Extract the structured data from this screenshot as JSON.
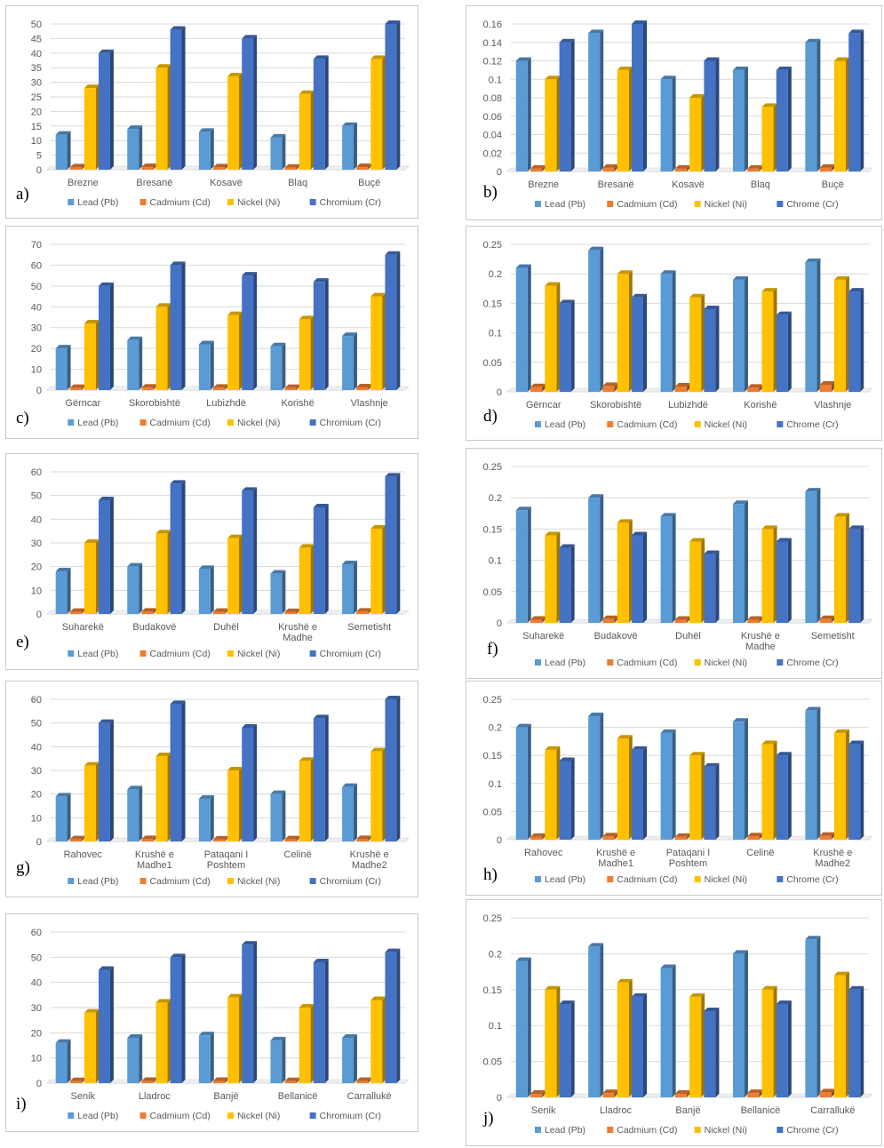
{
  "colors": {
    "lead": "#5b9bd5",
    "cadmium": "#ed7d31",
    "nickel": "#ffc000",
    "chromium": "#4472c4"
  },
  "chart_data": [
    {
      "type": "bar",
      "panel_label": "a)",
      "categories": [
        "Brezne",
        "Bresanë",
        "Kosavë",
        "Blaq",
        "Buçë"
      ],
      "ylim": [
        0,
        50
      ],
      "yticks": [
        0,
        5,
        10,
        15,
        20,
        25,
        30,
        35,
        40,
        45,
        50
      ],
      "series": [
        {
          "name": "Lead (Pb)",
          "values": [
            12,
            14,
            13,
            11,
            15
          ]
        },
        {
          "name": "Cadmium (Cd)",
          "values": [
            0.8,
            0.9,
            0.8,
            0.7,
            0.9
          ]
        },
        {
          "name": "Nickel (Ni)",
          "values": [
            28,
            35,
            32,
            26,
            38
          ]
        },
        {
          "name": "Chromium (Cr)",
          "values": [
            40,
            48,
            45,
            38,
            50
          ]
        }
      ],
      "legend": "bottom",
      "grid": true
    },
    {
      "type": "bar",
      "panel_label": "b)",
      "categories": [
        "Brezne",
        "Bresanë",
        "Kosavë",
        "Blaq",
        "Buçë"
      ],
      "ylim": [
        0,
        0.16
      ],
      "yticks": [
        0,
        0.02,
        0.04,
        0.06,
        0.08,
        0.1,
        0.12,
        0.14,
        0.16
      ],
      "series": [
        {
          "name": "Lead (Pb)",
          "values": [
            0.12,
            0.15,
            0.1,
            0.11,
            0.14
          ]
        },
        {
          "name": "Cadmium (Cd)",
          "values": [
            0.003,
            0.004,
            0.003,
            0.003,
            0.004
          ]
        },
        {
          "name": "Nickel (Ni)",
          "values": [
            0.1,
            0.11,
            0.08,
            0.07,
            0.12
          ]
        },
        {
          "name": "Chrome (Cr)",
          "values": [
            0.14,
            0.16,
            0.12,
            0.11,
            0.15
          ]
        }
      ],
      "legend": "bottom",
      "grid": true
    },
    {
      "type": "bar",
      "panel_label": "c)",
      "categories": [
        "Gërncar",
        "Skorobishtë",
        "Lubizhdë",
        "Korishë",
        "Vlashnje"
      ],
      "ylim": [
        0,
        70
      ],
      "yticks": [
        0,
        10,
        20,
        30,
        40,
        50,
        60,
        70
      ],
      "series": [
        {
          "name": "Lead (Pb)",
          "values": [
            20,
            24,
            22,
            21,
            26
          ]
        },
        {
          "name": "Cadmium (Cd)",
          "values": [
            1,
            1.2,
            1.1,
            1,
            1.3
          ]
        },
        {
          "name": "Nickel (Ni)",
          "values": [
            32,
            40,
            36,
            34,
            45
          ]
        },
        {
          "name": "Chromium (Cr)",
          "values": [
            50,
            60,
            55,
            52,
            65
          ]
        }
      ],
      "legend": "bottom",
      "grid": true
    },
    {
      "type": "bar",
      "panel_label": "d)",
      "categories": [
        "Gërncar",
        "Skorobishtë",
        "Lubizhdë",
        "Korishë",
        "Vlashnje"
      ],
      "ylim": [
        0,
        0.25
      ],
      "yticks": [
        0,
        0.05,
        0.1,
        0.15,
        0.2,
        0.25
      ],
      "series": [
        {
          "name": "Lead (Pb)",
          "values": [
            0.21,
            0.24,
            0.2,
            0.19,
            0.22
          ]
        },
        {
          "name": "Cadmium (Cd)",
          "values": [
            0.008,
            0.01,
            0.009,
            0.007,
            0.012
          ]
        },
        {
          "name": "Nickel (Ni)",
          "values": [
            0.18,
            0.2,
            0.16,
            0.17,
            0.19
          ]
        },
        {
          "name": "Chrome (Cr)",
          "values": [
            0.15,
            0.16,
            0.14,
            0.13,
            0.17
          ]
        }
      ],
      "legend": "bottom",
      "grid": true
    },
    {
      "type": "bar",
      "panel_label": "e)",
      "categories": [
        "Suharekë",
        "Budakovë",
        "Duhël",
        "Krushë e Madhe",
        "Semetisht"
      ],
      "ylim": [
        0,
        60
      ],
      "yticks": [
        0,
        10,
        20,
        30,
        40,
        50,
        60
      ],
      "series": [
        {
          "name": "Lead (Pb)",
          "values": [
            18,
            20,
            19,
            17,
            21
          ]
        },
        {
          "name": "Cadmium (Cd)",
          "values": [
            0.9,
            1,
            0.9,
            0.8,
            1
          ]
        },
        {
          "name": "Nickel (Ni)",
          "values": [
            30,
            34,
            32,
            28,
            36
          ]
        },
        {
          "name": "Chromium (Cr)",
          "values": [
            48,
            55,
            52,
            45,
            58
          ]
        }
      ],
      "legend": "bottom",
      "grid": true
    },
    {
      "type": "bar",
      "panel_label": "f)",
      "categories": [
        "Suharekë",
        "Budakovë",
        "Duhël",
        "Krushë e Madhe",
        "Semetisht"
      ],
      "ylim": [
        0,
        0.25
      ],
      "yticks": [
        0,
        0.05,
        0.1,
        0.15,
        0.2,
        0.25
      ],
      "series": [
        {
          "name": "Lead (Pb)",
          "values": [
            0.18,
            0.2,
            0.17,
            0.19,
            0.21
          ]
        },
        {
          "name": "Cadmium (Cd)",
          "values": [
            0.005,
            0.006,
            0.005,
            0.005,
            0.006
          ]
        },
        {
          "name": "Nickel (Ni)",
          "values": [
            0.14,
            0.16,
            0.13,
            0.15,
            0.17
          ]
        },
        {
          "name": "Chrome (Cr)",
          "values": [
            0.12,
            0.14,
            0.11,
            0.13,
            0.15
          ]
        }
      ],
      "legend": "bottom",
      "grid": true
    },
    {
      "type": "bar",
      "panel_label": "g)",
      "categories": [
        "Rahovec",
        "Krushë e Madhe1",
        "Pataqani I Poshtem",
        "Celinë",
        "Krushë e Madhe2"
      ],
      "ylim": [
        0,
        60
      ],
      "yticks": [
        0,
        10,
        20,
        30,
        40,
        50,
        60
      ],
      "series": [
        {
          "name": "Lead (Pb)",
          "values": [
            19,
            22,
            18,
            20,
            23
          ]
        },
        {
          "name": "Cadmium (Cd)",
          "values": [
            0.9,
            1,
            0.8,
            0.9,
            1
          ]
        },
        {
          "name": "Nickel (Ni)",
          "values": [
            32,
            36,
            30,
            34,
            38
          ]
        },
        {
          "name": "Chromium (Cr)",
          "values": [
            50,
            58,
            48,
            52,
            60
          ]
        }
      ],
      "legend": "bottom",
      "grid": true
    },
    {
      "type": "bar",
      "panel_label": "h)",
      "categories": [
        "Rahovec",
        "Krushë e Madhe1",
        "Pataqani I Poshtem",
        "Celinë",
        "Krushë e Madhe2"
      ],
      "ylim": [
        0,
        0.25
      ],
      "yticks": [
        0,
        0.05,
        0.1,
        0.15,
        0.2,
        0.25
      ],
      "series": [
        {
          "name": "Lead (Pb)",
          "values": [
            0.2,
            0.22,
            0.19,
            0.21,
            0.23
          ]
        },
        {
          "name": "Cadmium (Cd)",
          "values": [
            0.005,
            0.006,
            0.005,
            0.006,
            0.007
          ]
        },
        {
          "name": "Nickel (Ni)",
          "values": [
            0.16,
            0.18,
            0.15,
            0.17,
            0.19
          ]
        },
        {
          "name": "Chrome (Cr)",
          "values": [
            0.14,
            0.16,
            0.13,
            0.15,
            0.17
          ]
        }
      ],
      "legend": "bottom",
      "grid": true
    },
    {
      "type": "bar",
      "panel_label": "i)",
      "categories": [
        "Senik",
        "Lladroc",
        "Banjë",
        "Bellanicë",
        "Carrallukë"
      ],
      "ylim": [
        0,
        60
      ],
      "yticks": [
        0,
        10,
        20,
        30,
        40,
        50,
        60
      ],
      "series": [
        {
          "name": "Lead (Pb)",
          "values": [
            16,
            18,
            19,
            17,
            18
          ]
        },
        {
          "name": "Cadmium (Cd)",
          "values": [
            0.8,
            0.9,
            0.9,
            0.8,
            0.9
          ]
        },
        {
          "name": "Nickel (Ni)",
          "values": [
            28,
            32,
            34,
            30,
            33
          ]
        },
        {
          "name": "Chromium (Cr)",
          "values": [
            45,
            50,
            55,
            48,
            52
          ]
        }
      ],
      "legend": "bottom",
      "grid": true
    },
    {
      "type": "bar",
      "panel_label": "j)",
      "categories": [
        "Senik",
        "Lladroc",
        "Banjë",
        "Bellanicë",
        "Carrallukë"
      ],
      "ylim": [
        0,
        0.25
      ],
      "yticks": [
        0,
        0.05,
        0.1,
        0.15,
        0.2,
        0.25
      ],
      "series": [
        {
          "name": "Lead (Pb)",
          "values": [
            0.19,
            0.21,
            0.18,
            0.2,
            0.22
          ]
        },
        {
          "name": "Cadmium (Cd)",
          "values": [
            0.005,
            0.006,
            0.005,
            0.006,
            0.007
          ]
        },
        {
          "name": "Nickel (Ni)",
          "values": [
            0.15,
            0.16,
            0.14,
            0.15,
            0.17
          ]
        },
        {
          "name": "Chrome (Cr)",
          "values": [
            0.13,
            0.14,
            0.12,
            0.13,
            0.15
          ]
        }
      ],
      "legend": "bottom",
      "grid": true
    }
  ]
}
